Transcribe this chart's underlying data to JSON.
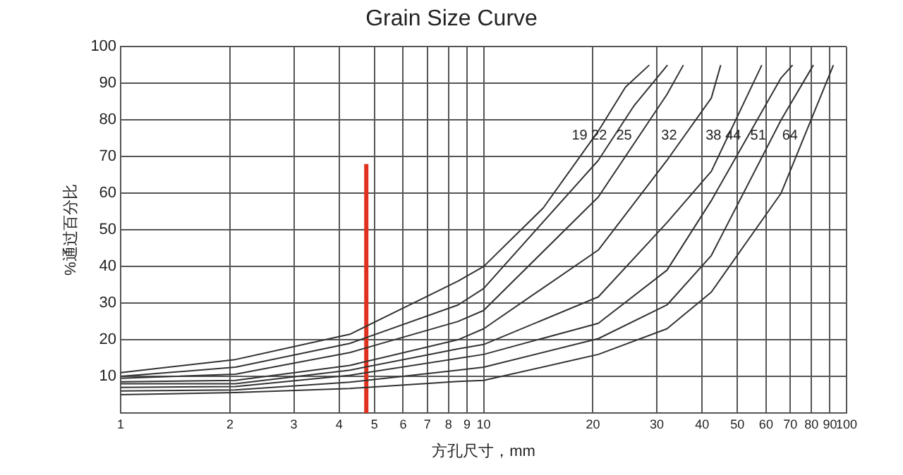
{
  "chart_data": {
    "type": "line",
    "title": "Grain Size Curve",
    "xlabel": "方孔尺寸，mm",
    "ylabel": "%通过百分比",
    "log": "x",
    "grid": true,
    "legend": false,
    "marker": "none",
    "line_style": "solid",
    "xlim": [
      1,
      100
    ],
    "xticks": [
      1,
      2,
      3,
      4,
      5,
      6,
      7,
      8,
      9,
      10,
      20,
      30,
      40,
      50,
      60,
      70,
      80,
      90,
      100
    ],
    "ylim": [
      0,
      100
    ],
    "yticks": [
      {
        "value": 0,
        "label": null
      },
      10,
      20,
      30,
      40,
      50,
      60,
      70,
      80,
      90,
      100
    ],
    "series": [
      {
        "name": "19",
        "color": "#333333",
        "x": [
          1,
          2.07,
          4.28,
          8.5,
          10,
          14.6,
          20.7,
          24.6,
          28.6
        ],
        "values": [
          11,
          14.6,
          21.5,
          36,
          40,
          56,
          77,
          89,
          95
        ]
      },
      {
        "name": "22",
        "color": "#333333",
        "x": [
          1,
          2.07,
          4.28,
          8.5,
          10,
          20.7,
          26,
          32.1
        ],
        "values": [
          10,
          12.5,
          19,
          29.5,
          34,
          69,
          84,
          95
        ]
      },
      {
        "name": "25",
        "color": "#333333",
        "x": [
          1,
          2.07,
          4.28,
          8.5,
          10,
          20.7,
          32,
          35.5
        ],
        "values": [
          9.5,
          10.6,
          16.5,
          25,
          28,
          59,
          87,
          95
        ]
      },
      {
        "name": "32",
        "color": "#333333",
        "x": [
          1,
          2.07,
          4.28,
          8.5,
          10,
          20.7,
          32,
          42.4,
          45
        ],
        "values": [
          8.5,
          8.9,
          13,
          20,
          23,
          44.5,
          69,
          86,
          95
        ]
      },
      {
        "name": "38",
        "color": "#333333",
        "x": [
          1,
          2.07,
          4.28,
          8.5,
          10,
          20.7,
          32,
          42.4,
          58.4
        ],
        "values": [
          8,
          8,
          11.7,
          17.5,
          18.7,
          31.7,
          52,
          66,
          95
        ]
      },
      {
        "name": "44",
        "color": "#333333",
        "x": [
          1,
          2.07,
          4.28,
          8.5,
          10,
          20.7,
          32,
          42.4,
          66,
          71
        ],
        "values": [
          7,
          7.2,
          10.3,
          14.9,
          16,
          24.5,
          39,
          58,
          91.5,
          95
        ]
      },
      {
        "name": "51",
        "color": "#333333",
        "x": [
          1,
          2.07,
          4.28,
          8.5,
          10,
          20.7,
          32,
          42.4,
          66,
          81
        ],
        "values": [
          6,
          6.3,
          8.4,
          11.7,
          12.5,
          20.3,
          29.5,
          43,
          80,
          95
        ]
      },
      {
        "name": "64",
        "color": "#333333",
        "x": [
          1,
          2.07,
          4.28,
          8.5,
          10,
          20.7,
          32,
          42.4,
          66,
          92
        ],
        "values": [
          5,
          5.6,
          6.7,
          8.6,
          8.9,
          16,
          23,
          33,
          60,
          95
        ]
      },
      {
        "color": "#e0301e",
        "x": [
          4.75,
          4.75
        ],
        "values": [
          0,
          68
        ]
      }
    ]
  }
}
